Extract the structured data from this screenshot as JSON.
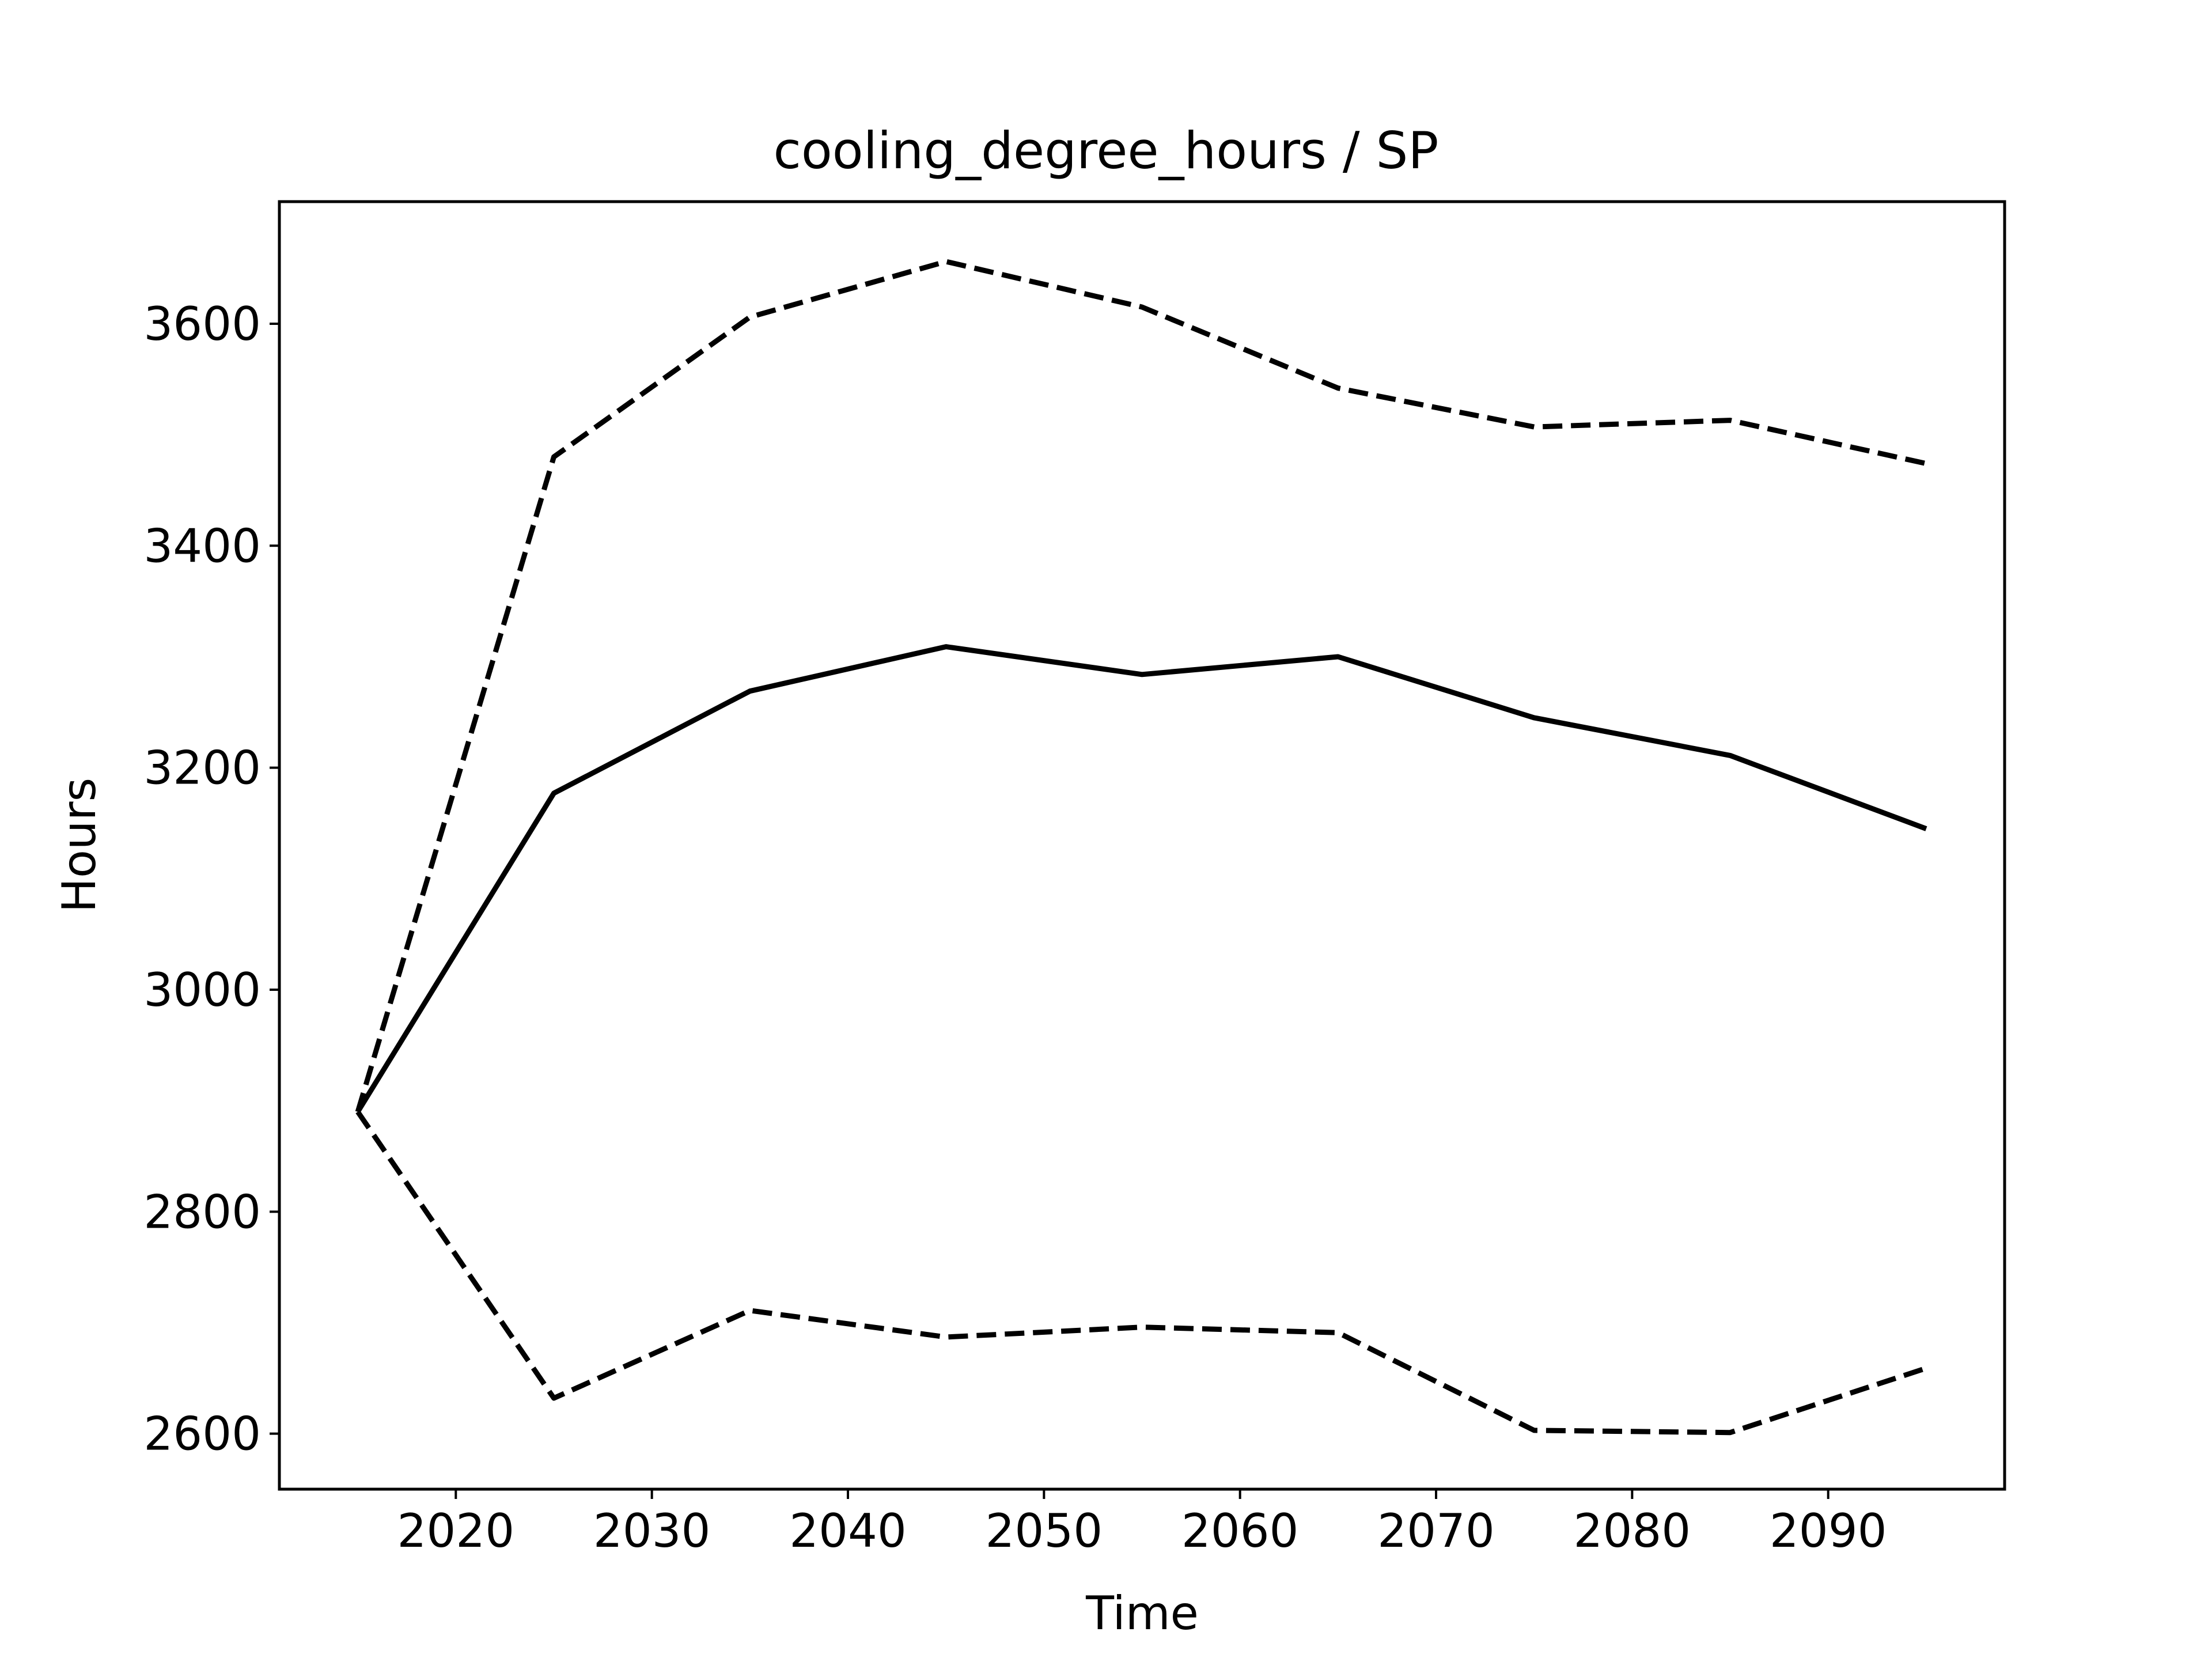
{
  "chart_data": {
    "type": "line",
    "title": "cooling_degree_hours / SP",
    "xlabel": "Time",
    "ylabel": "Hours",
    "xlim": [
      2011,
      2099
    ],
    "ylim": [
      2550,
      3710
    ],
    "xticks": [
      2020,
      2030,
      2040,
      2050,
      2060,
      2070,
      2080,
      2090
    ],
    "yticks": [
      2600,
      2800,
      3000,
      3200,
      3400,
      3600
    ],
    "grid": false,
    "x": [
      2015,
      2025,
      2035,
      2045,
      2055,
      2065,
      2075,
      2085,
      2095
    ],
    "series": [
      {
        "style": "solid",
        "color": "#000000",
        "values": [
          2890,
          3177,
          3269,
          3309,
          3284,
          3300,
          3245,
          3211,
          3145
        ]
      },
      {
        "style": "dashed",
        "color": "#000000",
        "values": [
          2890,
          3480,
          3606,
          3656,
          3615,
          3542,
          3507,
          3513,
          3474
        ]
      },
      {
        "style": "dashed",
        "color": "#000000",
        "values": [
          2890,
          2632,
          2711,
          2687,
          2696,
          2691,
          2603,
          2601,
          2659
        ]
      }
    ]
  }
}
